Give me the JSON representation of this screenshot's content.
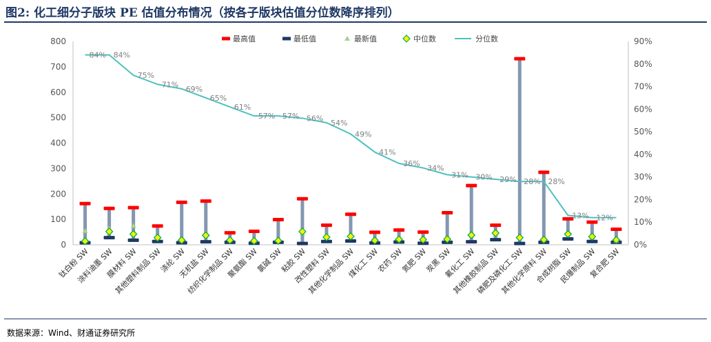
{
  "header": {
    "title": "图2: 化工细分子版块 PE 估值分布情况（按各子版块估值分位数降序排列）"
  },
  "footer": {
    "source": "数据来源：Wind、财通证券研究所"
  },
  "chart_data": {
    "type": "range-scatter-line",
    "title": "图2: 化工细分子版块 PE 估值分布情况（按各子版块估值分位数降序排列）",
    "categories": [
      "钛白粉 SW",
      "涂料油墨 SW",
      "膜材料 SW",
      "其他塑料制品 SW",
      "涤纶 SW",
      "无机盐 SW",
      "纺织化学制品 SW",
      "聚氨酯 SW",
      "氯碱 SW",
      "粘胶 SW",
      "改性塑料 SW",
      "其他化学制品 SW",
      "煤化工 SW",
      "农药 SW",
      "氮肥 SW",
      "炭黑 SW",
      "氟化工 SW",
      "其他橡胶制品 SW",
      "磷肥及磷化工 SW",
      "其他化学原料 SW",
      "合成树脂 SW",
      "民爆制品 SW",
      "复合肥 SW"
    ],
    "left_axis": {
      "min": 0,
      "max": 800,
      "step": 100
    },
    "right_axis": {
      "min": 0,
      "max": 90,
      "step": 10,
      "unit": "%"
    },
    "series": [
      {
        "name": "最高值",
        "axis": "left",
        "color": "#ff0000",
        "values": [
          162,
          143,
          146,
          74,
          167,
          172,
          47,
          53,
          99,
          181,
          77,
          120,
          49,
          58,
          50,
          126,
          233,
          77,
          732,
          285,
          102,
          89,
          61
        ]
      },
      {
        "name": "最低值",
        "axis": "left",
        "color": "#1f3864",
        "values": [
          8,
          28,
          18,
          13,
          8,
          12,
          10,
          6,
          10,
          5,
          13,
          15,
          7,
          11,
          6,
          10,
          12,
          20,
          5,
          10,
          23,
          13,
          10
        ]
      },
      {
        "name": "最新值",
        "axis": "left",
        "color": "#a9d18e",
        "values": [
          55,
          65,
          75,
          30,
          18,
          44,
          18,
          15,
          20,
          45,
          32,
          35,
          20,
          25,
          20,
          25,
          40,
          40,
          32,
          20,
          42,
          30,
          16
        ]
      },
      {
        "name": "中位数",
        "axis": "left",
        "color": "#92d050",
        "values": [
          14,
          52,
          42,
          28,
          18,
          37,
          18,
          15,
          16,
          52,
          30,
          33,
          17,
          21,
          20,
          22,
          38,
          46,
          28,
          20,
          42,
          32,
          19
        ]
      },
      {
        "name": "分位数",
        "axis": "right",
        "color": "#4dc0bf",
        "values": [
          84,
          84,
          75,
          71,
          69,
          65,
          61,
          57,
          57,
          56,
          54,
          49,
          41,
          36,
          34,
          31,
          30,
          29,
          28,
          28,
          13,
          12,
          12
        ]
      }
    ],
    "percentile_labels": [
      "84%",
      "84%",
      "75%",
      "71%",
      "69%",
      "65%",
      "61%",
      "57%",
      "57%",
      "56%",
      "54%",
      "49%",
      "41%",
      "36%",
      "34%",
      "31%",
      "30%",
      "29%",
      "28%",
      "28%",
      "13%",
      "12%",
      ""
    ],
    "grid": false,
    "legend_position": "top"
  }
}
